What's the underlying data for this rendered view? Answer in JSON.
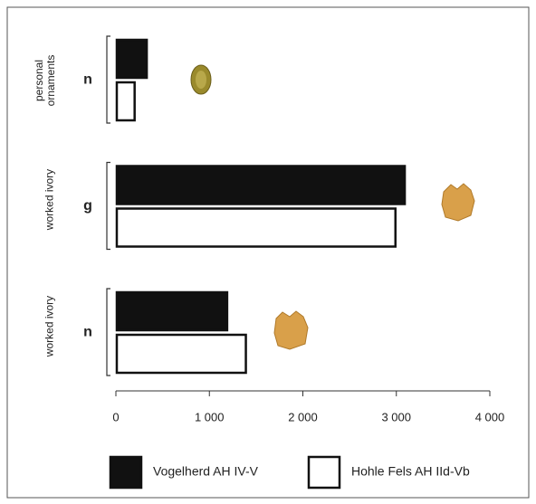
{
  "chart_data": {
    "type": "hbar",
    "categories": [
      "personal ornaments",
      "worked ivory",
      "worked ivory"
    ],
    "category_units": [
      "n",
      "g",
      "n"
    ],
    "series": [
      {
        "name": "Vogelherd AH IV-V",
        "color": "#111111",
        "values": [
          340,
          3100,
          1200
        ]
      },
      {
        "name": "Hohle Fels AH IId-Vb",
        "color": "#ffffff",
        "values": [
          210,
          3000,
          1400
        ]
      }
    ],
    "xlim": [
      0,
      4000
    ],
    "xticks": [
      0,
      {
        "value": 1000,
        "label": "1 000"
      },
      {
        "value": 2000,
        "label": "2 000"
      },
      {
        "value": 3000,
        "label": "3 000"
      },
      {
        "value": 4000,
        "label": "4 000"
      }
    ]
  }
}
